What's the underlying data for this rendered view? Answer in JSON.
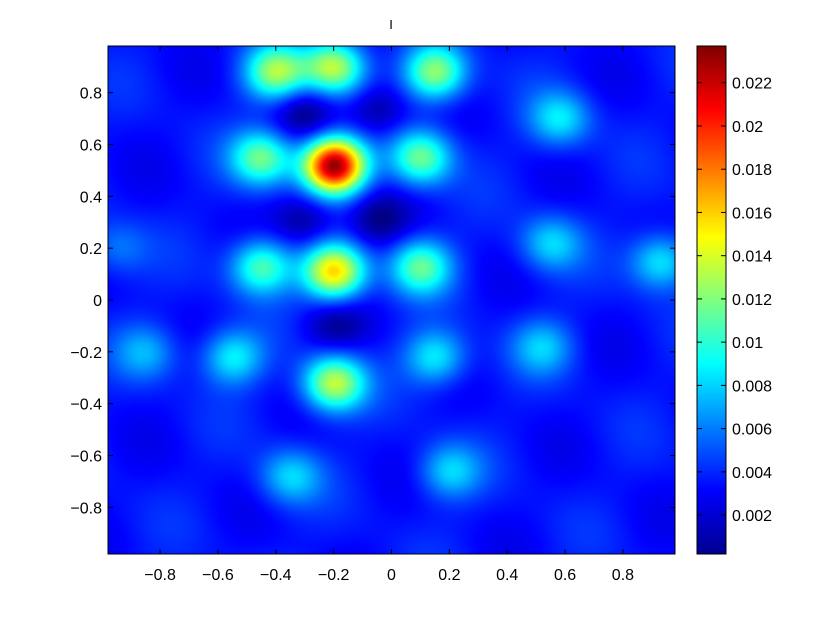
{
  "chart_data": {
    "type": "heatmap",
    "title": "I",
    "xlabel": "",
    "ylabel": "",
    "xlim": [
      -0.98,
      0.98
    ],
    "ylim": [
      -0.98,
      0.98
    ],
    "x_ticks": [
      "-0.8",
      "-0.6",
      "-0.4",
      "-0.2",
      "0",
      "0.2",
      "0.4",
      "0.6",
      "0.8"
    ],
    "y_ticks": [
      "0.8",
      "0.6",
      "0.4",
      "0.2",
      "0",
      "-0.2",
      "-0.4",
      "-0.6",
      "-0.8"
    ],
    "colorbar": {
      "range": [
        0.0002,
        0.0237
      ],
      "ticks": [
        "0.022",
        "0.02",
        "0.018",
        "0.016",
        "0.014",
        "0.012",
        "0.01",
        "0.008",
        "0.006",
        "0.004",
        "0.002"
      ],
      "colormap": "jet"
    },
    "features": [
      {
        "x": -0.2,
        "y": 0.52,
        "value": 0.0235
      },
      {
        "x": -0.2,
        "y": 0.11,
        "value": 0.016
      },
      {
        "x": -0.2,
        "y": -0.32,
        "value": 0.0135
      },
      {
        "x": -0.4,
        "y": 0.88,
        "value": 0.0125
      },
      {
        "x": -0.2,
        "y": 0.9,
        "value": 0.0135
      },
      {
        "x": 0.15,
        "y": 0.88,
        "value": 0.0125
      },
      {
        "x": -0.45,
        "y": 0.55,
        "value": 0.0115
      },
      {
        "x": 0.1,
        "y": 0.55,
        "value": 0.0115
      },
      {
        "x": -0.45,
        "y": 0.13,
        "value": 0.011
      },
      {
        "x": 0.1,
        "y": 0.13,
        "value": 0.011
      },
      {
        "x": -0.55,
        "y": -0.22,
        "value": 0.009
      },
      {
        "x": 0.15,
        "y": -0.22,
        "value": 0.009
      },
      {
        "x": -0.35,
        "y": -0.68,
        "value": 0.008
      },
      {
        "x": 0.2,
        "y": -0.66,
        "value": 0.008
      },
      {
        "x": 0.58,
        "y": 0.7,
        "value": 0.0085
      },
      {
        "x": 0.55,
        "y": 0.22,
        "value": 0.008
      },
      {
        "x": 0.52,
        "y": -0.18,
        "value": 0.0075
      },
      {
        "x": 0.93,
        "y": 0.15,
        "value": 0.009
      },
      {
        "x": -0.95,
        "y": 0.2,
        "value": 0.006
      },
      {
        "x": -0.85,
        "y": -0.2,
        "value": 0.007
      },
      {
        "x": -0.3,
        "y": 0.73,
        "value": 0.0005
      },
      {
        "x": -0.05,
        "y": 0.73,
        "value": 0.0005
      },
      {
        "x": -0.3,
        "y": 0.31,
        "value": 0.0005
      },
      {
        "x": -0.05,
        "y": 0.31,
        "value": 0.0005
      },
      {
        "x": -0.2,
        "y": -0.1,
        "value": 0.001
      }
    ]
  }
}
